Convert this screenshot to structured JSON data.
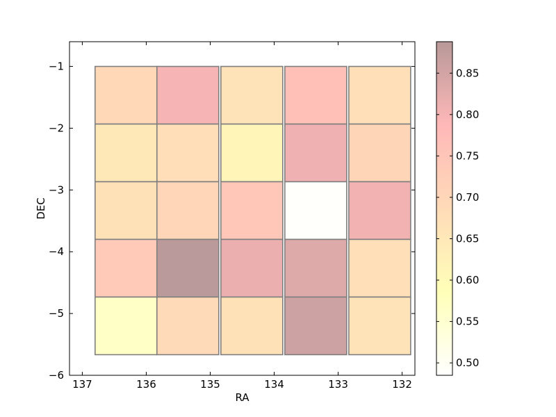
{
  "chart_data": {
    "type": "heatmap",
    "title": "",
    "xlabel": "RA",
    "ylabel": "DEC",
    "xlim": [
      137.2,
      131.8
    ],
    "ylim": [
      -6,
      -0.6
    ],
    "x_ticks": [
      137,
      136,
      135,
      134,
      133,
      132
    ],
    "y_ticks": [
      -1,
      -2,
      -3,
      -4,
      -5,
      -6
    ],
    "x_tick_labels": [
      "137",
      "136",
      "135",
      "134",
      "133",
      "132"
    ],
    "y_tick_labels": [
      "−1",
      "−2",
      "−3",
      "−4",
      "−5",
      "−6"
    ],
    "ra_edges": [
      136.8,
      135.8333,
      134.8333,
      133.8333,
      132.8333,
      131.8333
    ],
    "dec_edges": [
      -1,
      -1.9333,
      -2.8667,
      -3.8,
      -4.7333,
      -5.6667
    ],
    "cell_width": 0.9667,
    "cell_height": 0.9333,
    "grid": false,
    "values": [
      [
        0.697,
        0.8,
        0.665,
        0.765,
        0.675
      ],
      [
        0.65,
        0.68,
        0.615,
        0.81,
        0.705
      ],
      [
        0.672,
        0.7,
        0.745,
        0.49,
        0.805
      ],
      [
        0.735,
        0.885,
        0.815,
        0.835,
        0.675
      ],
      [
        0.565,
        0.69,
        0.67,
        0.86,
        0.665
      ]
    ],
    "colorbar": {
      "min": 0.485,
      "max": 0.888,
      "ticks": [
        0.5,
        0.55,
        0.6,
        0.65,
        0.7,
        0.75,
        0.8,
        0.85
      ],
      "tick_labels": [
        "0.50",
        "0.55",
        "0.60",
        "0.65",
        "0.70",
        "0.75",
        "0.80",
        "0.85"
      ],
      "colormap": [
        "#ffffff",
        "#ffff4d",
        "#ffa64d",
        "#ff4d4d",
        "#4d0000"
      ],
      "alpha": 0.4
    }
  }
}
